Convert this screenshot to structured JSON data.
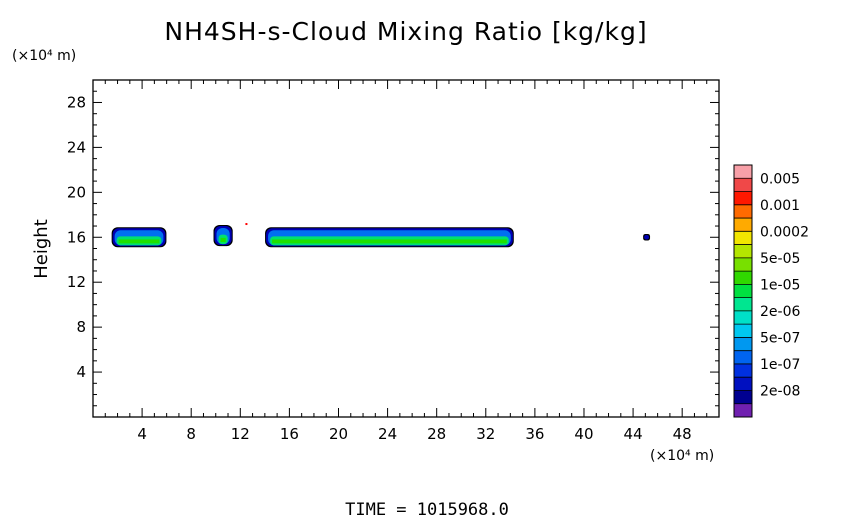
{
  "chart_data": {
    "type": "heatmap",
    "title": "NH4SH-s-Cloud Mixing Ratio [kg/kg]",
    "xlabel": "",
    "ylabel": "Height",
    "x_unit": "(×10⁴ m)",
    "y_unit": "(×10⁴ m)",
    "xlim": [
      0,
      51
    ],
    "ylim": [
      0,
      30
    ],
    "x_ticks": [
      4,
      8,
      12,
      16,
      20,
      24,
      28,
      32,
      36,
      40,
      44,
      48
    ],
    "y_ticks": [
      4,
      8,
      12,
      16,
      20,
      24,
      28
    ],
    "grid": false,
    "colorbar": {
      "labels": [
        "0.005",
        "0.001",
        "0.0002",
        "5e-05",
        "1e-05",
        "2e-06",
        "5e-07",
        "1e-07",
        "2e-08"
      ],
      "colors_top_to_bottom": [
        "#f8a0a8",
        "#f04848",
        "#ff1800",
        "#ff6a00",
        "#ffaa00",
        "#f2e600",
        "#b4e600",
        "#78e000",
        "#30d800",
        "#00e040",
        "#00e690",
        "#00e0c8",
        "#00c8f0",
        "#0098f0",
        "#0064f0",
        "#0030e0",
        "#0010c0",
        "#000090",
        "#7020b0"
      ]
    },
    "contour_bands": [
      {
        "name": "cloud-1",
        "x_range": [
          1.6,
          5.9
        ],
        "y_range": [
          15.2,
          16.8
        ]
      },
      {
        "name": "cloud-2",
        "x_range": [
          9.9,
          11.3
        ],
        "y_range": [
          15.3,
          17.0
        ]
      },
      {
        "name": "cloud-3",
        "x_range": [
          14.1,
          34.2
        ],
        "y_range": [
          15.2,
          16.8
        ]
      },
      {
        "name": "cloud-4",
        "x_range": [
          44.9,
          45.3
        ],
        "y_range": [
          15.8,
          16.2
        ]
      }
    ],
    "colors": {
      "outline": "#000000",
      "outer": "#0000b4",
      "mid": "#0070f0",
      "inner": "#00e070",
      "core": "#20e000",
      "edge_red": "#ff0000"
    }
  },
  "footer": {
    "time_label": "TIME  =  1015968.0"
  }
}
